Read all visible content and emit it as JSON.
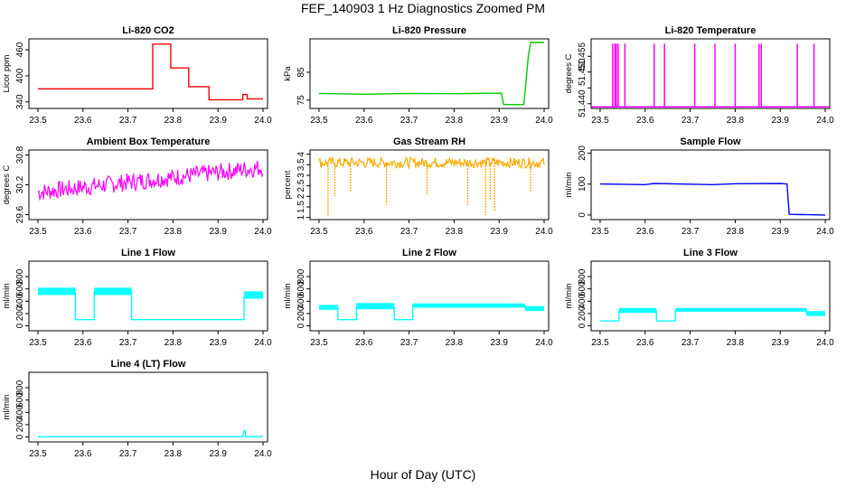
{
  "page": {
    "title": "FEF_140903  1 Hz Diagnostics Zoomed PM",
    "x_axis_caption": "Hour of Day (UTC)"
  },
  "chart_data": [
    {
      "title": "Li-820 CO2",
      "type": "line",
      "ylabel": "Licor ppm",
      "color": "#ff0000",
      "xlim": [
        23.48,
        24.01
      ],
      "ylim": [
        325,
        485
      ],
      "yticks": [
        340,
        400,
        460
      ],
      "xticks": [
        23.5,
        23.6,
        23.7,
        23.8,
        23.9,
        24.0
      ],
      "series": [
        {
          "x": [
            23.5,
            23.755,
            23.755,
            23.795,
            23.795,
            23.835,
            23.835,
            23.88,
            23.88,
            23.955,
            23.955,
            23.965,
            23.965,
            24.0
          ],
          "y": [
            370,
            370,
            473,
            473,
            418,
            418,
            375,
            375,
            345,
            345,
            357,
            357,
            347,
            347
          ]
        }
      ]
    },
    {
      "title": "Li-820 Pressure",
      "type": "line",
      "ylabel": "kPa",
      "color": "#00cc00",
      "xlim": [
        23.48,
        24.01
      ],
      "ylim": [
        72,
        97
      ],
      "yticks": [
        75,
        85
      ],
      "xticks": [
        23.5,
        23.6,
        23.7,
        23.8,
        23.9,
        24.0
      ],
      "series": [
        {
          "x": [
            23.5,
            23.6,
            23.7,
            23.8,
            23.905,
            23.91,
            23.955,
            23.965,
            23.97,
            24.0
          ],
          "y": [
            77.4,
            77.1,
            77.4,
            77.3,
            77.5,
            73.4,
            73.4,
            91,
            95.7,
            95.7
          ]
        }
      ]
    },
    {
      "title": "Li-820 Temperature",
      "type": "line",
      "ylabel": "degrees C",
      "color": "#ff00ff",
      "xlim": [
        23.48,
        24.01
      ],
      "ylim": [
        51.4385,
        51.4605
      ],
      "yticks": [
        51.44,
        51.445,
        51.45,
        51.455
      ],
      "ytick_labels": [
        "51.440",
        "",
        "51.450",
        "51.455"
      ],
      "xticks": [
        23.5,
        23.6,
        23.7,
        23.8,
        23.9,
        24.0
      ],
      "baseline": 51.439,
      "spikes": [
        23.528,
        23.533,
        23.536,
        23.54,
        23.555,
        23.62,
        23.643,
        23.71,
        23.755,
        23.8,
        23.853,
        23.858,
        23.938,
        23.975
      ],
      "spike_top": 51.459
    },
    {
      "title": "Ambient Box Temperature",
      "type": "line",
      "ylabel": "degrees C",
      "color": "#ff00ff",
      "xlim": [
        23.48,
        24.01
      ],
      "ylim": [
        29.5,
        30.9
      ],
      "yticks": [
        29.6,
        30.2,
        30.8
      ],
      "xticks": [
        23.5,
        23.6,
        23.7,
        23.8,
        23.9,
        24.0
      ],
      "trend": {
        "x": [
          23.5,
          24.0
        ],
        "y": [
          30.05,
          30.55
        ],
        "noise": 0.18
      }
    },
    {
      "title": "Gas Stream RH",
      "type": "line",
      "ylabel": "percent",
      "color": "#ffaa00",
      "xlim": [
        23.48,
        24.01
      ],
      "ylim": [
        0.9,
        4.2
      ],
      "yticks": [
        1.0,
        1.5,
        2.0,
        2.5,
        3.0,
        3.5,
        4.0
      ],
      "xticks": [
        23.5,
        23.6,
        23.7,
        23.8,
        23.9,
        24.0
      ],
      "trend": {
        "x": [
          23.5,
          24.0
        ],
        "y": [
          3.6,
          3.6
        ],
        "noise": 0.25
      },
      "dips": [
        [
          23.52,
          1.0
        ],
        [
          23.535,
          2.0
        ],
        [
          23.57,
          2.2
        ],
        [
          23.65,
          1.6
        ],
        [
          23.74,
          2.1
        ],
        [
          23.83,
          1.6
        ],
        [
          23.87,
          1.1
        ],
        [
          23.88,
          1.8
        ],
        [
          23.89,
          1.3
        ],
        [
          23.97,
          2.2
        ]
      ]
    },
    {
      "title": "Sample Flow",
      "type": "line",
      "ylabel": "ml/min",
      "color": "#0000ff",
      "xlim": [
        23.48,
        24.01
      ],
      "ylim": [
        -15,
        210
      ],
      "yticks": [
        0,
        100,
        200
      ],
      "xticks": [
        23.5,
        23.6,
        23.7,
        23.8,
        23.9,
        24.0
      ],
      "series": [
        {
          "x": [
            23.5,
            23.6,
            23.62,
            23.75,
            23.8,
            23.9,
            23.915,
            23.92,
            24.0
          ],
          "y": [
            100,
            98,
            102,
            98,
            101,
            102,
            100,
            2,
            0
          ]
        }
      ]
    },
    {
      "title": "Line 1 Flow",
      "type": "line",
      "ylabel": "ml/min",
      "color": "#00ffff",
      "xlim": [
        23.48,
        24.01
      ],
      "ylim": [
        -80,
        1050
      ],
      "yticks": [
        0,
        200,
        400,
        600,
        800
      ],
      "xticks": [
        23.5,
        23.6,
        23.7,
        23.8,
        23.9,
        24.0
      ],
      "segments": [
        [
          23.5,
          23.583,
          560,
          60
        ],
        [
          23.583,
          23.625,
          100,
          0
        ],
        [
          23.625,
          23.708,
          560,
          60
        ],
        [
          23.708,
          23.958,
          100,
          0
        ],
        [
          23.958,
          24.0,
          500,
          60
        ]
      ]
    },
    {
      "title": "Line 2 Flow",
      "type": "line",
      "ylabel": "ml/min",
      "color": "#00ffff",
      "xlim": [
        23.48,
        24.01
      ],
      "ylim": [
        -80,
        1050
      ],
      "yticks": [
        0,
        200,
        400,
        600,
        800
      ],
      "xticks": [
        23.5,
        23.6,
        23.7,
        23.8,
        23.9,
        24.0
      ],
      "segments": [
        [
          23.5,
          23.542,
          300,
          40
        ],
        [
          23.542,
          23.583,
          100,
          0
        ],
        [
          23.583,
          23.667,
          320,
          50
        ],
        [
          23.667,
          23.708,
          100,
          0
        ],
        [
          23.708,
          23.958,
          330,
          35
        ],
        [
          23.958,
          24.0,
          280,
          40
        ]
      ]
    },
    {
      "title": "Line 3 Flow",
      "type": "line",
      "ylabel": "ml/min",
      "color": "#00ffff",
      "xlim": [
        23.48,
        24.01
      ],
      "ylim": [
        -80,
        1050
      ],
      "yticks": [
        0,
        200,
        400,
        600,
        800
      ],
      "xticks": [
        23.5,
        23.6,
        23.7,
        23.8,
        23.9,
        24.0
      ],
      "segments": [
        [
          23.5,
          23.542,
          80,
          10
        ],
        [
          23.542,
          23.625,
          250,
          40
        ],
        [
          23.625,
          23.667,
          80,
          10
        ],
        [
          23.667,
          23.958,
          260,
          30
        ],
        [
          23.958,
          24.0,
          200,
          40
        ]
      ]
    },
    {
      "title": "Line 4 (LT) Flow",
      "type": "line",
      "ylabel": "ml/min",
      "color": "#00ffff",
      "xlim": [
        23.48,
        24.01
      ],
      "ylim": [
        -80,
        1050
      ],
      "yticks": [
        0,
        200,
        400,
        600,
        800
      ],
      "xticks": [
        23.5,
        23.6,
        23.7,
        23.8,
        23.9,
        24.0
      ],
      "series": [
        {
          "x": [
            23.5,
            23.955,
            23.957,
            23.96,
            23.962,
            24.0
          ],
          "y": [
            5,
            5,
            100,
            100,
            5,
            5
          ]
        }
      ]
    }
  ]
}
